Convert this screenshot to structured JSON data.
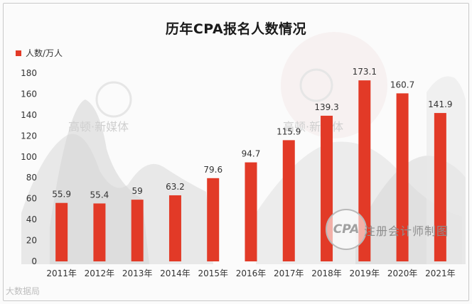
{
  "chart_data": {
    "type": "bar",
    "title": "历年CPA报名人数情况",
    "series": [
      {
        "name": "人数/万人",
        "color": "#e23a27",
        "values": [
          55.9,
          55.4,
          59,
          63.2,
          79.6,
          94.7,
          115.9,
          139.3,
          173.1,
          160.7,
          141.9
        ]
      }
    ],
    "categories": [
      "2011年",
      "2012年",
      "2013年",
      "2014年",
      "2015年",
      "2016年",
      "2017年",
      "2018年",
      "2019年",
      "2020年",
      "2021年"
    ],
    "data_labels": [
      "55.9",
      "55.4",
      "59",
      "63.2",
      "79.6",
      "94.7",
      "115.9",
      "139.3",
      "173.1",
      "160.7",
      "141.9"
    ],
    "ylim": [
      0,
      180
    ],
    "yticks": [
      0,
      20,
      40,
      60,
      80,
      100,
      120,
      140,
      160,
      180
    ],
    "legend_position": "top-left",
    "grid": false
  },
  "watermarks": {
    "logo_text": "CPA",
    "stamp": "注册会计师制图",
    "media_1": "高顿·新媒体",
    "media_2": "高顿·新媒体",
    "source": "大数据局"
  }
}
